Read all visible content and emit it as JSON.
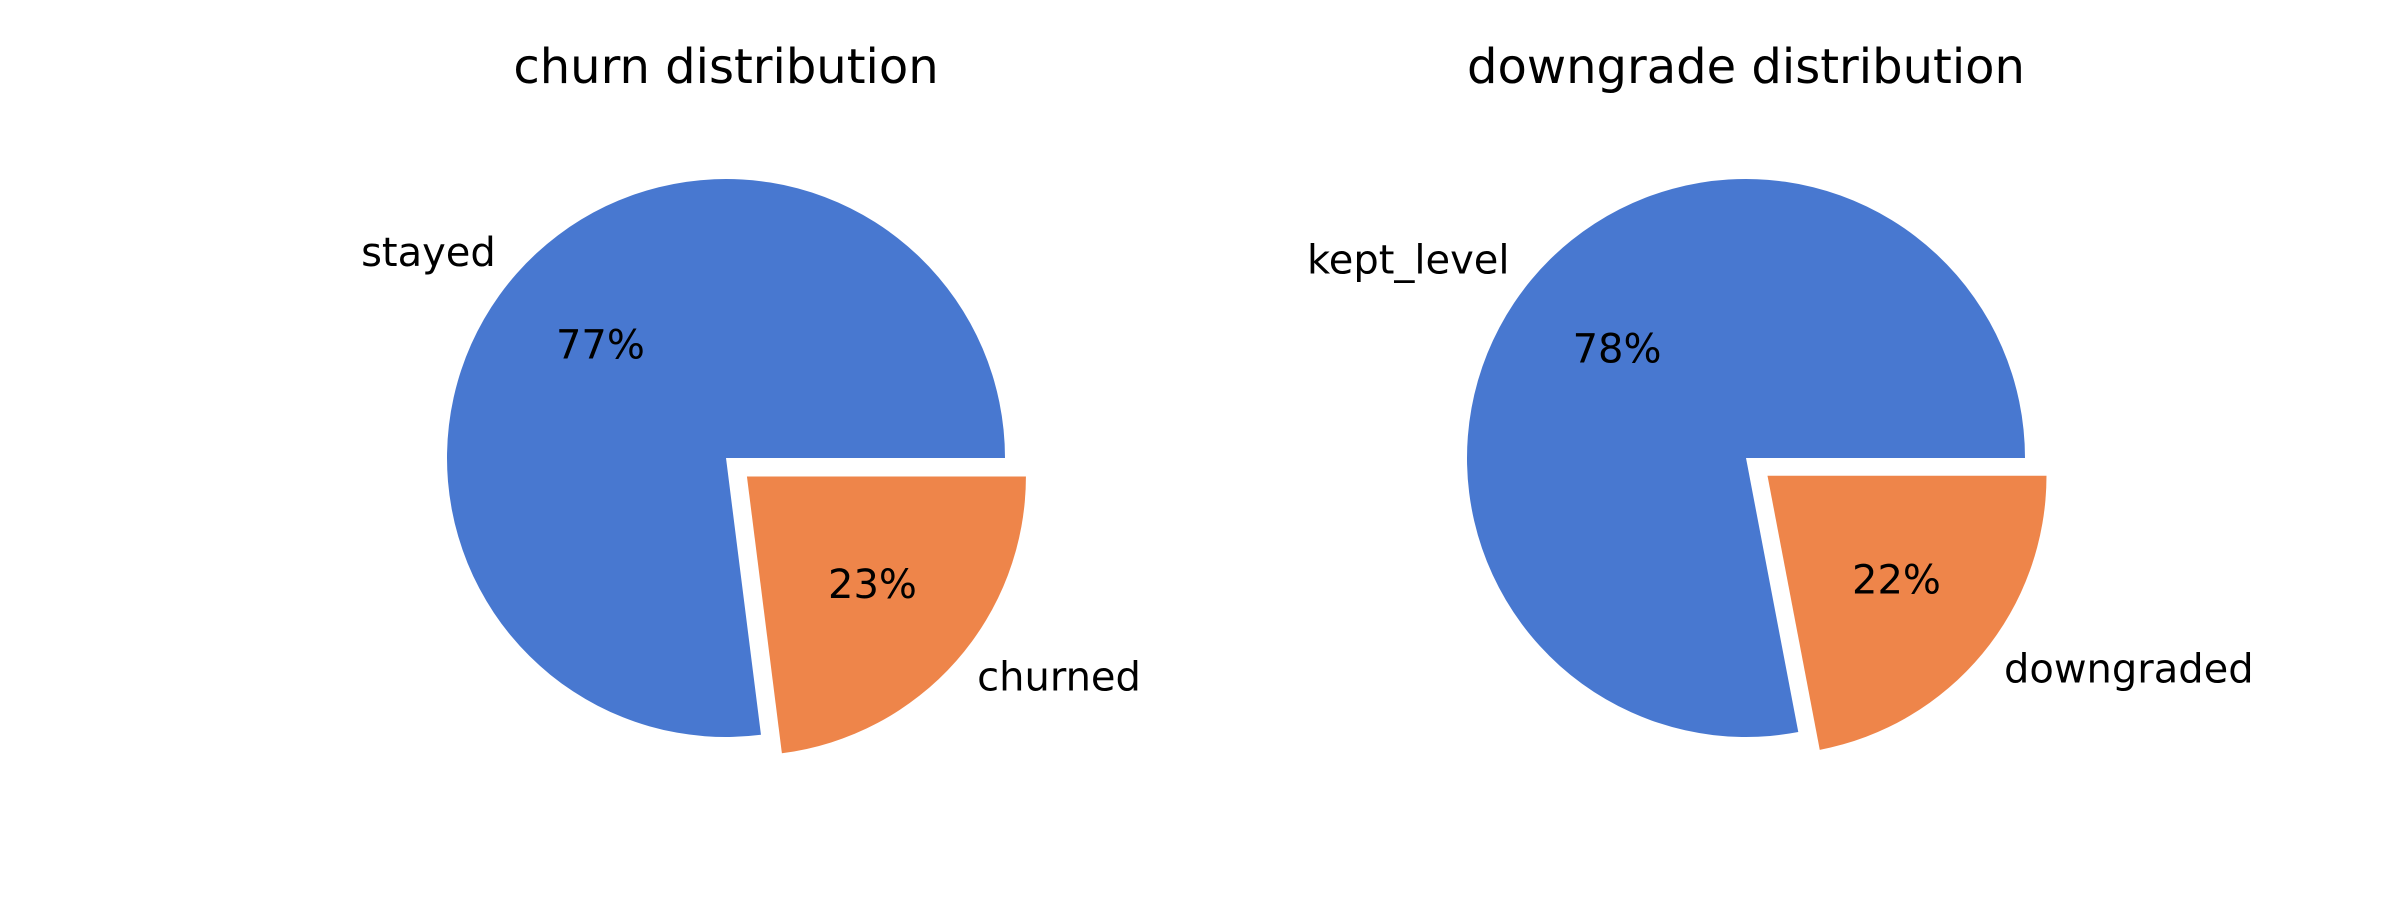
{
  "chart_data": [
    {
      "type": "pie",
      "title": "churn distribution",
      "slices": [
        {
          "label": "stayed",
          "value": 77,
          "pct_label": "77%",
          "color": "#4878d0",
          "exploded": false
        },
        {
          "label": "churned",
          "value": 23,
          "pct_label": "23%",
          "color": "#ee854a",
          "exploded": true
        }
      ],
      "start_angle": 0,
      "direction": "counterclockwise"
    },
    {
      "type": "pie",
      "title": "downgrade distribution",
      "slices": [
        {
          "label": "kept_level",
          "value": 78,
          "pct_label": "78%",
          "color": "#4878d0",
          "exploded": false
        },
        {
          "label": "downgraded",
          "value": 22,
          "pct_label": "22%",
          "color": "#ee854a",
          "exploded": true
        }
      ],
      "start_angle": 0,
      "direction": "counterclockwise"
    }
  ]
}
